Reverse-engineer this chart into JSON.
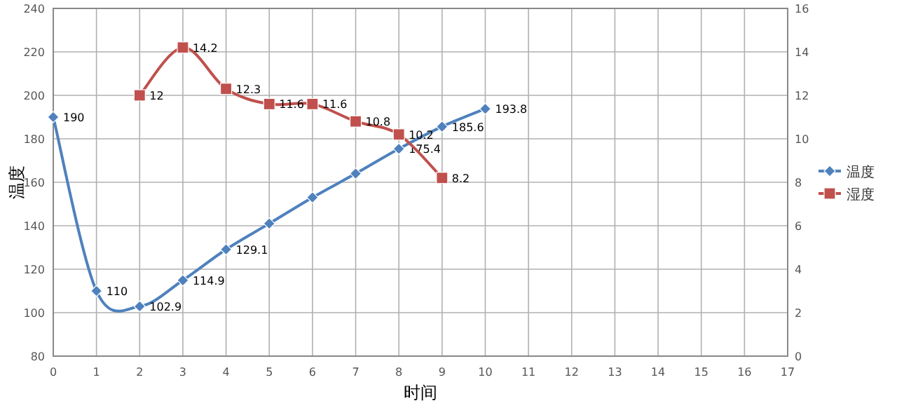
{
  "chart_data": {
    "type": "line",
    "xlabel": "时间",
    "ylabel": "温度",
    "xlim": [
      0,
      17
    ],
    "xticks": [
      0,
      1,
      2,
      3,
      4,
      5,
      6,
      7,
      8,
      9,
      10,
      11,
      12,
      13,
      14,
      15,
      16,
      17
    ],
    "ylim": [
      80,
      240
    ],
    "yticks": [
      80,
      100,
      120,
      140,
      160,
      180,
      200,
      220,
      240
    ],
    "y2lim": [
      0,
      16
    ],
    "y2ticks": [
      0,
      2,
      4,
      6,
      8,
      10,
      12,
      14,
      16
    ],
    "grid": true,
    "legend": "right",
    "series": [
      {
        "name": "温度",
        "color": "#4f81bd",
        "marker": "diamond",
        "x": [
          0,
          1,
          2,
          3,
          4,
          5,
          6,
          7,
          8,
          9,
          10
        ],
        "values": [
          190,
          110,
          102.9,
          114.9,
          129.1,
          141,
          153,
          164,
          175.4,
          185.6,
          193.8
        ],
        "value_labels": [
          "190",
          "110",
          "102.9",
          "114.9",
          "129.1",
          null,
          null,
          null,
          "175.4",
          "185.6",
          "193.8"
        ]
      },
      {
        "name": "湿度",
        "color": "#c0504d",
        "marker": "square",
        "axis": "y2",
        "x": [
          2,
          3,
          4,
          5,
          6,
          7,
          8,
          9
        ],
        "values": [
          12,
          14.2,
          12.3,
          11.6,
          11.6,
          10.8,
          10.2,
          8.2
        ],
        "value_labels": [
          "12",
          "14.2",
          "12.3",
          "11.6",
          "11.6",
          "10.8",
          "10.2",
          "8.2"
        ]
      }
    ]
  }
}
